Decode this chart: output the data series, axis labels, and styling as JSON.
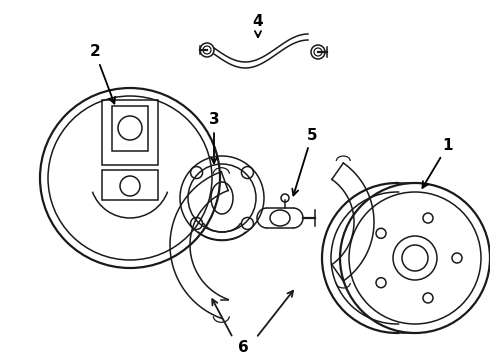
{
  "bg_color": "#ffffff",
  "line_color": "#1a1a1a",
  "label_color": "#000000",
  "lw_thin": 0.9,
  "lw_main": 1.1,
  "lw_thick": 1.6,
  "label_fontsize": 11,
  "arrow_lw": 1.3,
  "figsize": [
    4.9,
    3.6
  ],
  "dpi": 100,
  "xlim": [
    0,
    490
  ],
  "ylim": [
    0,
    360
  ]
}
